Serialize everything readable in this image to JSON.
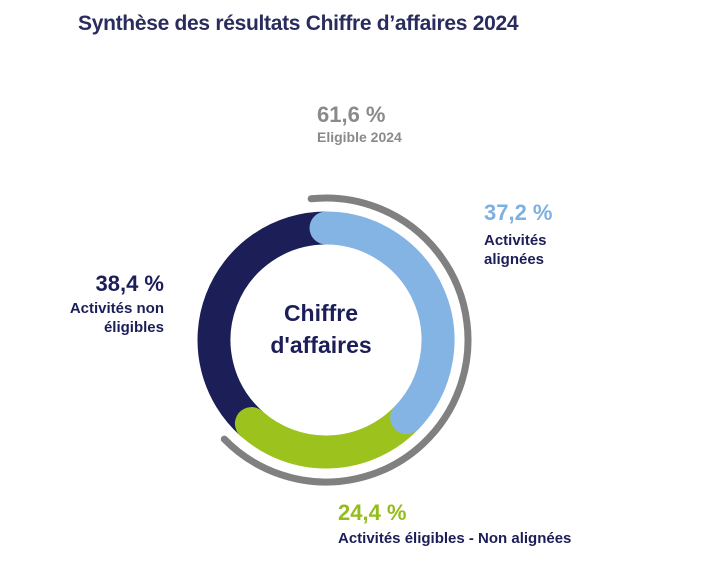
{
  "title": "Synthèse des résultats Chiffre d’affaires 2024",
  "center_label": {
    "line1": "Chiffre",
    "line2": "d'affaires"
  },
  "colors": {
    "title": "#2a2c5e",
    "non_eligible": "#1b1e57",
    "aligned": "#84b4e3",
    "eligible_non_aligned": "#9cc21e",
    "eligible_arc": "#808080"
  },
  "labels": {
    "eligible": {
      "pct": "61,6 %",
      "caption": "Eligible 2024"
    },
    "aligned": {
      "pct": "37,2 %",
      "caption_line1": "Activités",
      "caption_line2": "alignées"
    },
    "non_eligible": {
      "pct": "38,4 %",
      "caption_line1": "Activités non",
      "caption_line2": "éligibles"
    },
    "eligible_non_aligned": {
      "pct": "24,4 %",
      "caption": "Activités éligibles - Non alignées"
    }
  },
  "chart_data": {
    "type": "pie",
    "variant": "donut",
    "title": "Synthèse des résultats Chiffre d’affaires 2024",
    "center_text": "Chiffre d'affaires",
    "slices": [
      {
        "name": "Activités alignées",
        "value": 37.2,
        "color": "#84b4e3"
      },
      {
        "name": "Activités éligibles - Non alignées",
        "value": 24.4,
        "color": "#9cc21e"
      },
      {
        "name": "Activités non éligibles",
        "value": 38.4,
        "color": "#1b1e57"
      }
    ],
    "outer_arc": {
      "name": "Eligible 2024",
      "value": 61.6,
      "color": "#808080"
    }
  }
}
